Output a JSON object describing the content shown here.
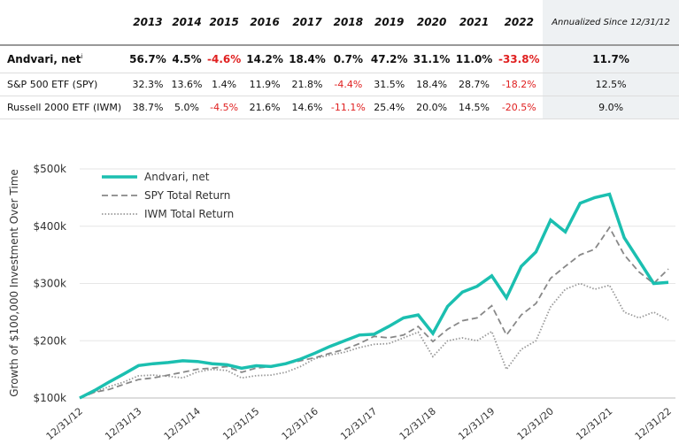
{
  "table": {
    "columns": [
      "2013",
      "2014",
      "2015",
      "2016",
      "2017",
      "2018",
      "2019",
      "2020",
      "2021",
      "2022",
      "Annualized Since 12/31/12"
    ],
    "rows": [
      {
        "label": "Andvari, net",
        "note": "i",
        "emphasis": true,
        "cells": [
          "56.7%",
          "4.5%",
          "-4.6%",
          "14.2%",
          "18.4%",
          "0.7%",
          "47.2%",
          "31.1%",
          "11.0%",
          "-33.8%",
          "11.7%"
        ]
      },
      {
        "label": "S&P 500 ETF (SPY)",
        "emphasis": false,
        "cells": [
          "32.3%",
          "13.6%",
          "1.4%",
          "11.9%",
          "21.8%",
          "-4.4%",
          "31.5%",
          "18.4%",
          "28.7%",
          "-18.2%",
          "12.5%"
        ]
      },
      {
        "label": "Russell 2000 ETF (IWM)",
        "emphasis": false,
        "cells": [
          "38.7%",
          "5.0%",
          "-4.5%",
          "21.6%",
          "14.6%",
          "-11.1%",
          "25.4%",
          "20.0%",
          "14.5%",
          "-20.5%",
          "9.0%"
        ]
      }
    ],
    "negative_color": "#e02020"
  },
  "chart_data": {
    "type": "line",
    "y_label": "Growth of $100,000 Investment Over Time",
    "categories": [
      "12/31/12",
      null,
      null,
      null,
      "12/31/13",
      null,
      null,
      null,
      "12/31/14",
      null,
      null,
      null,
      "12/31/15",
      null,
      null,
      null,
      "12/31/16",
      null,
      null,
      null,
      "12/31/17",
      null,
      null,
      null,
      "12/31/18",
      null,
      null,
      null,
      "12/31/19",
      null,
      null,
      null,
      "12/31/20",
      null,
      null,
      null,
      "12/31/21",
      null,
      null,
      null,
      "12/31/22"
    ],
    "series": [
      {
        "name": "Andvari, net",
        "color": "#1bbfb0",
        "style": "solid",
        "values": [
          100000,
          113000,
          128000,
          142000,
          156700,
          160000,
          162000,
          165000,
          163800,
          160000,
          158000,
          152000,
          156300,
          155000,
          160000,
          168000,
          178500,
          190000,
          200000,
          210000,
          211300,
          225000,
          240000,
          245000,
          212800,
          260000,
          285000,
          295000,
          313300,
          275000,
          330000,
          355000,
          410700,
          390000,
          440000,
          450000,
          455900,
          380000,
          340000,
          300000,
          301800
        ]
      },
      {
        "name": "SPY Total Return",
        "color": "#888888",
        "style": "dashed",
        "values": [
          100000,
          110000,
          115000,
          124000,
          132300,
          135000,
          140000,
          145000,
          150300,
          152000,
          155000,
          145000,
          152300,
          155000,
          160000,
          165000,
          170500,
          178000,
          185000,
          195000,
          207600,
          205000,
          210000,
          225000,
          198500,
          220000,
          235000,
          240000,
          261100,
          210000,
          245000,
          265000,
          309100,
          330000,
          350000,
          360000,
          397800,
          350000,
          320000,
          300000,
          325400
        ]
      },
      {
        "name": "IWM Total Return",
        "color": "#999999",
        "style": "dotted",
        "values": [
          100000,
          110000,
          120000,
          128000,
          138700,
          140000,
          138000,
          135000,
          145600,
          150000,
          148000,
          135000,
          139100,
          140000,
          145000,
          155000,
          169100,
          175000,
          180000,
          188000,
          193800,
          195000,
          205000,
          215000,
          172300,
          200000,
          205000,
          200000,
          216100,
          150000,
          185000,
          200000,
          259300,
          290000,
          300000,
          290000,
          296900,
          250000,
          240000,
          250000,
          236000
        ]
      }
    ],
    "ylim": [
      100000,
      500000
    ],
    "yticks": [
      {
        "value": 100000,
        "label": "$100k"
      },
      {
        "value": 200000,
        "label": "$200k"
      },
      {
        "value": 300000,
        "label": "$300k"
      },
      {
        "value": 400000,
        "label": "$400k"
      },
      {
        "value": 500000,
        "label": "$500k"
      }
    ],
    "grid": true,
    "legend": "top-left"
  }
}
